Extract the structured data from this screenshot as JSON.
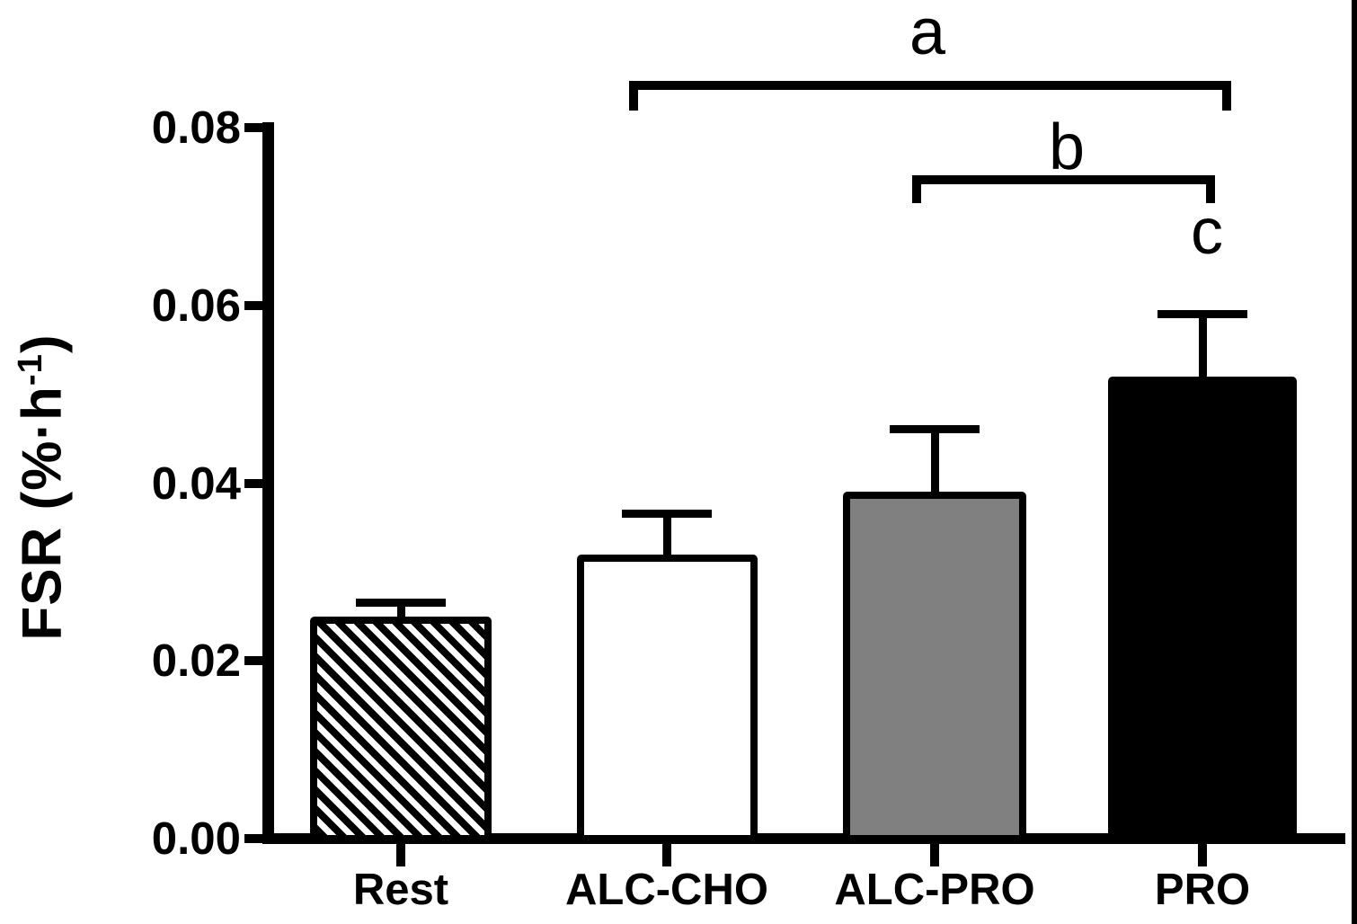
{
  "figure": {
    "y_axis": {
      "label_base": "FSR (%·h",
      "label_sup": "-1",
      "label_close": ")",
      "ticks": [
        {
          "label": "0.08",
          "value": 0.08
        },
        {
          "label": "0.06",
          "value": 0.06
        },
        {
          "label": "0.04",
          "value": 0.04
        },
        {
          "label": "0.02",
          "value": 0.02
        },
        {
          "label": "0.00",
          "value": 0.0
        }
      ]
    },
    "colors": {
      "outline": "#000000",
      "rest_hatch": "#000000",
      "alc_cho_fill": "#ffffff",
      "alc_pro_fill": "#808080",
      "pro_fill": "#000000"
    }
  },
  "chart_data": {
    "type": "bar",
    "title": "",
    "xlabel": "",
    "ylabel": "FSR (%·h⁻¹)",
    "ylim": [
      0,
      0.08
    ],
    "y_ticks": [
      0.0,
      0.02,
      0.04,
      0.06,
      0.08
    ],
    "grid": false,
    "legend": false,
    "error_bar_direction": "up",
    "categories": [
      "Rest",
      "ALC-CHO",
      "ALC-PRO",
      "PRO"
    ],
    "values": [
      0.025,
      0.032,
      0.039,
      0.052
    ],
    "errors_up": [
      0.002,
      0.005,
      0.0075,
      0.0075
    ],
    "bar_styles": [
      {
        "fill": "hatch-diagonal",
        "color": "#000000"
      },
      {
        "fill": "solid",
        "color": "#ffffff"
      },
      {
        "fill": "solid",
        "color": "#808080"
      },
      {
        "fill": "solid",
        "color": "#000000"
      }
    ],
    "annotations": [
      {
        "label": "a",
        "type": "bracket",
        "from": "ALC-CHO",
        "to": "PRO"
      },
      {
        "label": "b",
        "type": "bracket",
        "from": "ALC-PRO",
        "to": "PRO"
      },
      {
        "label": "c",
        "type": "letter",
        "above": "PRO"
      }
    ]
  }
}
